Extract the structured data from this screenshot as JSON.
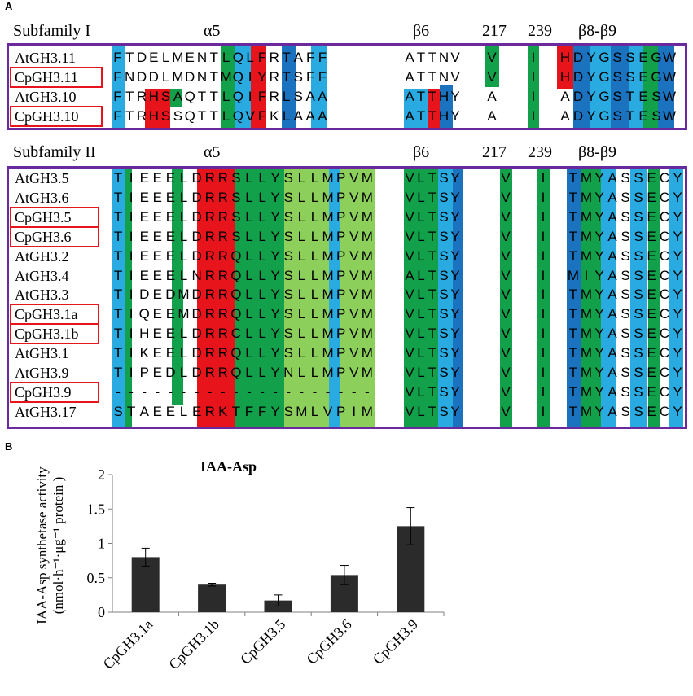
{
  "panel_a_label": "A",
  "panel_b_label": "B",
  "alignment": {
    "subfamily1": {
      "title": "Subfamily I",
      "headers": {
        "alpha5": "α5",
        "beta6": "β6",
        "pos217": "217",
        "pos239": "239",
        "beta89": "β8-β9"
      },
      "rows": [
        {
          "name": "AtGH3.11",
          "highlighted": false,
          "s1": "FTDELMENTLQLFRTAFF",
          "s2": "ATTNV",
          "s3": "V",
          "s4": "I",
          "s5": "HDYGSSEGW"
        },
        {
          "name": "CpGH3.11",
          "highlighted": true,
          "s1": "FNDDLMDNTMQIYRTSFF",
          "s2": "ATTNV",
          "s3": "V",
          "s4": "I",
          "s5": "HDYGSSEGW"
        },
        {
          "name": "AtGH3.10",
          "highlighted": false,
          "s1": "FTRHSAQTTLQIFRLSAA",
          "s2": "ATTHY",
          "s3": "A",
          "s4": "I",
          "s5": "ADYGSTESW"
        },
        {
          "name": "CpGH3.10",
          "highlighted": true,
          "s1": "FTRHSSQTTLQVFKLAAA",
          "s2": "ATTHY",
          "s3": "A",
          "s4": "I",
          "s5": "ADYGSTESW"
        }
      ]
    },
    "subfamily2": {
      "title": "Subfamily II",
      "headers": {
        "alpha5": "α5",
        "beta6": "β6",
        "pos217": "217",
        "pos239": "239",
        "beta89": "β8-β9"
      },
      "rows": [
        {
          "name": "AtGH3.5",
          "highlighted": false,
          "s1": "TIEEELDRRSLLYSLLMPVM",
          "s2": "VLTSY",
          "s3": "V",
          "s4": "I",
          "s5": "TMYASSECY"
        },
        {
          "name": "AtGH3.6",
          "highlighted": false,
          "s1": "TIEEELDRRSLLYSLLMPVM",
          "s2": "VLTSY",
          "s3": "V",
          "s4": "I",
          "s5": "TMYASSECY"
        },
        {
          "name": "CpGH3.5",
          "highlighted": true,
          "s1": "TIEEELDRRSLLYSLLMPVM",
          "s2": "VLTSY",
          "s3": "V",
          "s4": "I",
          "s5": "TMYASSECY"
        },
        {
          "name": "CpGH3.6",
          "highlighted": true,
          "s1": "TIEEELDRRSLLYSLLMPVM",
          "s2": "VLTSY",
          "s3": "V",
          "s4": "I",
          "s5": "TMYASSECY"
        },
        {
          "name": "AtGH3.2",
          "highlighted": false,
          "s1": "TIEEELDRRQLLYSLLMPVM",
          "s2": "VLTSY",
          "s3": "V",
          "s4": "I",
          "s5": "TMYASSECY"
        },
        {
          "name": "AtGH3.4",
          "highlighted": false,
          "s1": "TIEEELNRRQLLYSLLMPVM",
          "s2": "ALTSY",
          "s3": "V",
          "s4": "I",
          "s5": "MIYASSECY"
        },
        {
          "name": "AtGH3.3",
          "highlighted": false,
          "s1": "TIDEDMDRRQLLYSLLMPVM",
          "s2": "VLTSY",
          "s3": "V",
          "s4": "I",
          "s5": "TMYASSECY"
        },
        {
          "name": "CpGH3.1a",
          "highlighted": true,
          "s1": "TIQEEMDRRQLLYSLLMPVM",
          "s2": "VLTSY",
          "s3": "V",
          "s4": "I",
          "s5": "TMYASSECY"
        },
        {
          "name": "CpGH3.1b",
          "highlighted": true,
          "s1": "TIHEELDRRCLLYSLLMPVM",
          "s2": "VLTSY",
          "s3": "V",
          "s4": "I",
          "s5": "TMYASSECY"
        },
        {
          "name": "AtGH3.1",
          "highlighted": false,
          "s1": "TIKEELDRRQLLYSLLMPVM",
          "s2": "VLTSY",
          "s3": "V",
          "s4": "I",
          "s5": "TMYASSECY"
        },
        {
          "name": "AtGH3.9",
          "highlighted": false,
          "s1": "TIPEDLDRRQLLYNLLMPVM",
          "s2": "VLTSY",
          "s3": "V",
          "s4": "I",
          "s5": "TMYASSECY"
        },
        {
          "name": "CpGH3.9",
          "highlighted": true,
          "s1": "--------------------",
          "s2": "VLTSY",
          "s3": "V",
          "s4": "I",
          "s5": "TMYASSECY"
        },
        {
          "name": "AtGH3.17",
          "highlighted": false,
          "s1": "STAEELERKTFFYSMLVPIM",
          "s2": "VLTSY",
          "s3": "V",
          "s4": "I",
          "s5": "TMYASSECY"
        }
      ]
    }
  },
  "colors": {
    "red": "#e8141c",
    "green": "#12a04a",
    "light_green": "#8ccf5a",
    "light_blue": "#29aae1",
    "dark_blue": "#1b73c0",
    "purple": "#6a2a9e",
    "bar": "#2b2b2b"
  },
  "chart_data": {
    "type": "bar",
    "title": "IAA-Asp",
    "ylabel_line1": "IAA-Asp synthetase activity",
    "ylabel_line2": "(nmol·h⁻¹·μg⁻¹  protein )",
    "categories": [
      "CpGH3.1a",
      "CpGH3.1b",
      "CpGH3.5",
      "CpGH3.6",
      "CpGH3.9"
    ],
    "values": [
      0.8,
      0.4,
      0.17,
      0.54,
      1.25
    ],
    "errors": [
      0.13,
      0.02,
      0.08,
      0.14,
      0.27
    ],
    "ylim": [
      0,
      2
    ],
    "yticks": [
      "0",
      "0.5",
      "1",
      "1.5",
      "2"
    ]
  }
}
